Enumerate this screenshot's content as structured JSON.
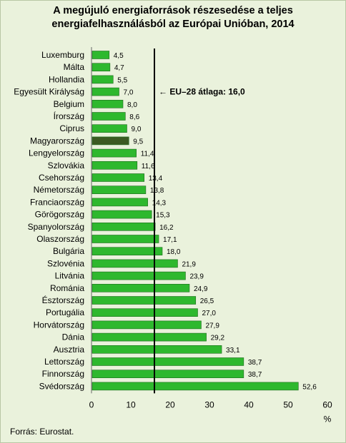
{
  "title_line1": "A megújuló energiaforrások részesedése a teljes",
  "title_line2": "energiafelhasználásból az Európai Unióban, 2014",
  "source": "Forrás: Eurostat.",
  "chart_data": {
    "type": "bar",
    "orientation": "horizontal",
    "categories": [
      "Luxemburg",
      "Málta",
      "Hollandia",
      "Egyesült Királyság",
      "Belgium",
      "Írország",
      "Ciprus",
      "Magyarország",
      "Lengyelország",
      "Szlovákia",
      "Csehország",
      "Németország",
      "Franciaország",
      "Görögország",
      "Spanyolország",
      "Olaszország",
      "Bulgária",
      "Szlovénia",
      "Litvánia",
      "Románia",
      "Észtország",
      "Portugália",
      "Horvátország",
      "Dánia",
      "Ausztria",
      "Lettország",
      "Finnország",
      "Svédország"
    ],
    "values": [
      4.5,
      4.7,
      5.5,
      7.0,
      8.0,
      8.6,
      9.0,
      9.5,
      11.4,
      11.6,
      13.4,
      13.8,
      14.3,
      15.3,
      16.2,
      17.1,
      18.0,
      21.9,
      23.9,
      24.9,
      26.5,
      27.0,
      27.9,
      29.2,
      33.1,
      38.7,
      38.7,
      52.6
    ],
    "value_labels": [
      "4,5",
      "4,7",
      "5,5",
      "7,0",
      "8,0",
      "8,6",
      "9,0",
      "9,5",
      "11,4",
      "11,6",
      "13,4",
      "13,8",
      "14,3",
      "15,3",
      "16,2",
      "17,1",
      "18,0",
      "21,9",
      "23,9",
      "24,9",
      "26,5",
      "27,0",
      "27,9",
      "29,2",
      "33,1",
      "38,7",
      "38,7",
      "52,6"
    ],
    "highlight": "Magyarország",
    "xlim": [
      0,
      60
    ],
    "xticks": [
      0,
      10,
      20,
      30,
      40,
      50,
      60
    ],
    "xlabel": "%",
    "reference_line": {
      "value": 16.0,
      "label": "← EU–28 átlaga: 16,0"
    },
    "grid": false,
    "colors": {
      "bar": "#2eb82e",
      "bar_highlight": "#3b5a22",
      "reference": "#000000"
    }
  }
}
